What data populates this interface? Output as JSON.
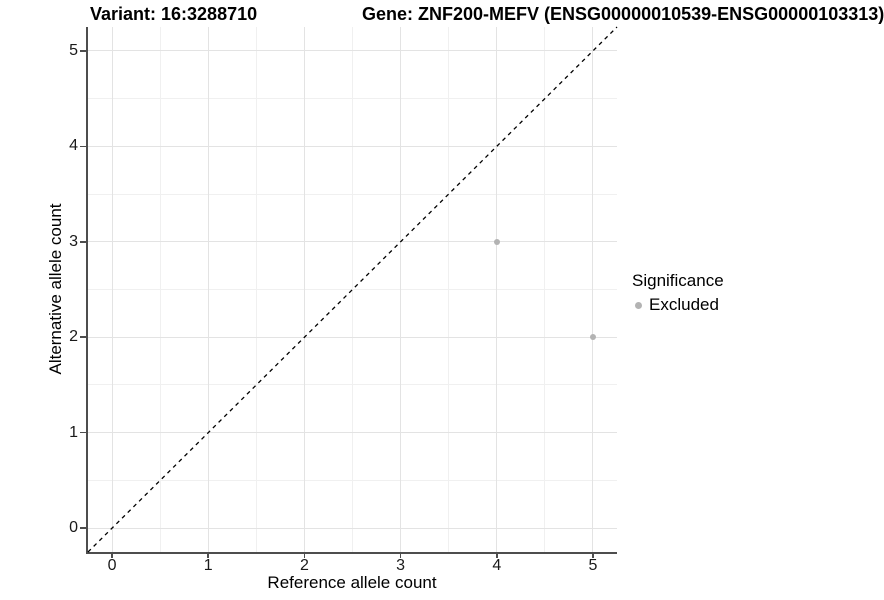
{
  "titles": {
    "variant": "Variant: 16:3288710",
    "gene": "Gene: ZNF200-MEFV (ENSG00000010539-ENSG00000103313)"
  },
  "chart_data": {
    "type": "scatter",
    "xlabel": "Reference allele count",
    "ylabel": "Alternative allele count",
    "xlim": [
      -0.25,
      5.25
    ],
    "ylim": [
      -0.25,
      5.25
    ],
    "xticks": [
      0,
      1,
      2,
      3,
      4,
      5
    ],
    "yticks": [
      0,
      1,
      2,
      3,
      4,
      5
    ],
    "xticks_minor": [
      0.5,
      1.5,
      2.5,
      3.5,
      4.5
    ],
    "yticks_minor": [
      0.5,
      1.5,
      2.5,
      3.5,
      4.5
    ],
    "grid": "major+minor",
    "points": [
      {
        "x": 4,
        "y": 3,
        "series": "Excluded"
      },
      {
        "x": 5,
        "y": 2,
        "series": "Excluded"
      }
    ],
    "reference_line": {
      "type": "diagonal",
      "equation": "y = x",
      "style": "dashed",
      "color": "#000000"
    },
    "legend": {
      "title": "Significance",
      "position": "right",
      "entries": [
        {
          "label": "Excluded",
          "color": "#b3b3b3",
          "marker": "circle"
        }
      ]
    }
  },
  "colors": {
    "point": "#b3b3b3",
    "axis_line": "#4d4d4d",
    "grid_major": "#e3e3e3",
    "grid_minor": "#f0f0f0",
    "background": "#ffffff",
    "text": "#000000"
  }
}
